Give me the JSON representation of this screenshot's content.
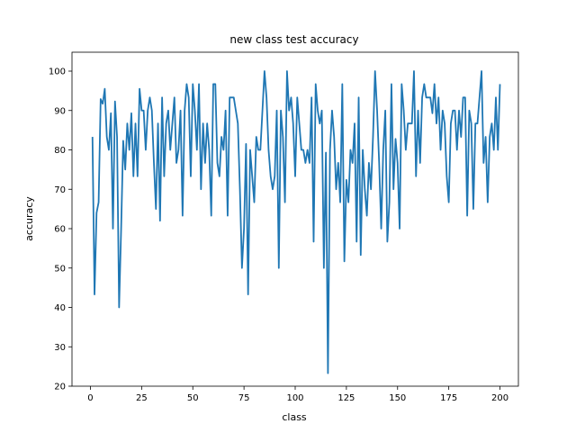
{
  "chart_data": {
    "type": "line",
    "title": "new class test accuracy",
    "xlabel": "class",
    "ylabel": "accuracy",
    "xlim": [
      -9,
      209
    ],
    "ylim": [
      20,
      104.8
    ],
    "xticks": [
      0,
      25,
      50,
      75,
      100,
      125,
      150,
      175,
      200
    ],
    "yticks": [
      20,
      30,
      40,
      50,
      60,
      70,
      80,
      90,
      100
    ],
    "grid": false,
    "line_color": "#1f77b4",
    "x_start": 1,
    "values": [
      83.3,
      43.3,
      64.0,
      66.7,
      92.9,
      91.7,
      95.5,
      83.3,
      80.0,
      89.3,
      60.0,
      92.3,
      83.3,
      40.0,
      60.0,
      82.3,
      75.0,
      86.7,
      80.0,
      89.3,
      73.3,
      86.7,
      73.3,
      95.5,
      90.0,
      90.0,
      80.0,
      90.0,
      93.3,
      90.0,
      76.7,
      65.0,
      86.7,
      62.0,
      93.3,
      73.3,
      86.7,
      90.0,
      80.0,
      86.7,
      93.3,
      76.7,
      80.0,
      90.0,
      63.3,
      90.0,
      96.7,
      93.3,
      73.3,
      96.7,
      90.0,
      80.0,
      96.7,
      70.0,
      86.7,
      76.7,
      86.7,
      80.0,
      63.3,
      96.7,
      96.7,
      76.7,
      73.3,
      83.3,
      80.0,
      90.0,
      63.3,
      93.3,
      93.3,
      93.3,
      90.0,
      86.7,
      70.0,
      50.0,
      60.0,
      81.5,
      43.3,
      80.0,
      73.3,
      66.7,
      83.3,
      80.0,
      80.0,
      90.0,
      100.0,
      93.3,
      80.0,
      73.3,
      70.0,
      73.3,
      90.0,
      50.0,
      90.0,
      83.3,
      66.7,
      100.0,
      90.0,
      93.3,
      86.7,
      73.3,
      93.3,
      86.7,
      80.0,
      80.0,
      76.7,
      80.0,
      76.7,
      93.3,
      56.7,
      96.7,
      90.0,
      86.7,
      90.0,
      50.0,
      79.3,
      23.3,
      80.0,
      90.0,
      83.3,
      70.0,
      76.7,
      66.7,
      96.7,
      51.7,
      72.4,
      66.7,
      80.0,
      76.7,
      86.7,
      56.7,
      93.3,
      53.3,
      80.0,
      70.0,
      63.3,
      76.7,
      70.0,
      83.3,
      100.0,
      90.0,
      76.7,
      60.0,
      80.0,
      90.0,
      56.7,
      66.7,
      96.7,
      70.0,
      82.8,
      76.7,
      60.0,
      96.7,
      90.0,
      80.0,
      86.7,
      86.7,
      86.7,
      100.0,
      73.3,
      90.0,
      76.7,
      93.3,
      96.7,
      93.3,
      93.3,
      93.3,
      89.3,
      96.7,
      86.7,
      93.3,
      80.0,
      90.0,
      86.7,
      73.3,
      66.7,
      86.7,
      90.0,
      90.0,
      80.0,
      90.0,
      83.3,
      93.3,
      93.3,
      63.3,
      90.0,
      86.7,
      65.0,
      86.7,
      86.7,
      93.3,
      100.0,
      76.7,
      83.3,
      66.7,
      83.3,
      86.7,
      80.0,
      93.3,
      80.0,
      96.7
    ]
  }
}
